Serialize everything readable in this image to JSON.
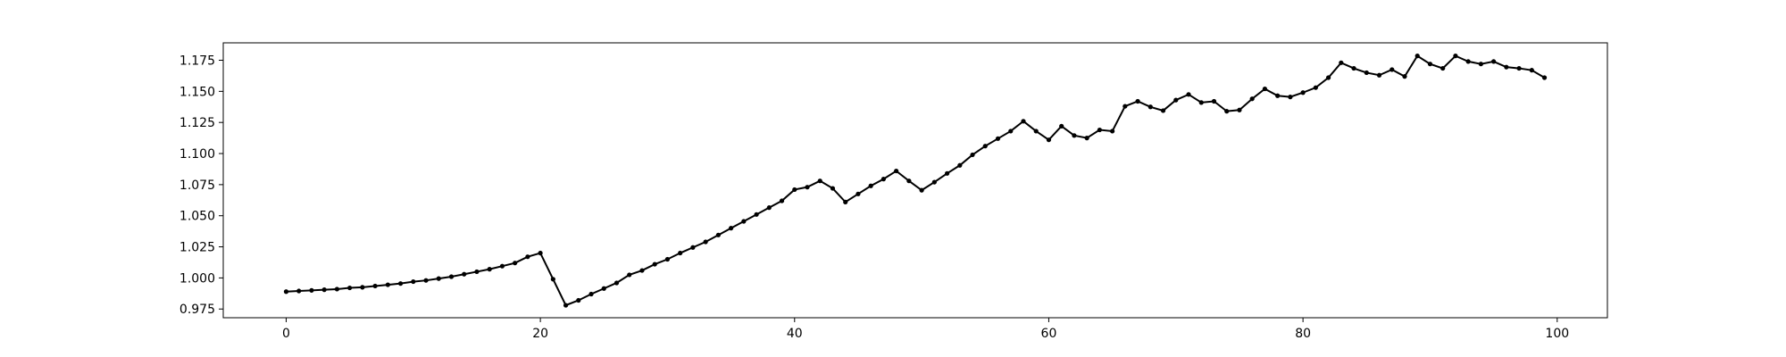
{
  "chart_data": {
    "type": "line",
    "color": "#000000",
    "x": [
      0,
      1,
      2,
      3,
      4,
      5,
      6,
      7,
      8,
      9,
      10,
      11,
      12,
      13,
      14,
      15,
      16,
      17,
      18,
      19,
      20,
      21,
      22,
      23,
      24,
      25,
      26,
      27,
      28,
      29,
      30,
      31,
      32,
      33,
      34,
      35,
      36,
      37,
      38,
      39,
      40,
      41,
      42,
      43,
      44,
      45,
      46,
      47,
      48,
      49,
      50,
      51,
      52,
      53,
      54,
      55,
      56,
      57,
      58,
      59,
      60,
      61,
      62,
      63,
      64,
      65,
      66,
      67,
      68,
      69,
      70,
      71,
      72,
      73,
      74,
      75,
      76,
      77,
      78,
      79,
      80,
      81,
      82,
      83,
      84,
      85,
      86,
      87,
      88,
      89,
      90,
      91,
      92,
      93,
      94,
      95,
      96,
      97,
      98,
      99
    ],
    "values": [
      0.989,
      0.9895,
      0.99,
      0.9905,
      0.991,
      0.992,
      0.9925,
      0.9935,
      0.9945,
      0.9955,
      0.997,
      0.998,
      0.9995,
      1.001,
      1.003,
      1.005,
      1.007,
      1.0095,
      1.012,
      1.017,
      1.02,
      0.999,
      0.978,
      0.982,
      0.987,
      0.9915,
      0.996,
      1.0025,
      1.006,
      1.011,
      1.015,
      1.02,
      1.0245,
      1.029,
      1.0345,
      1.04,
      1.0455,
      1.051,
      1.0565,
      1.062,
      1.071,
      1.073,
      1.078,
      1.072,
      1.061,
      1.0675,
      1.074,
      1.0795,
      1.086,
      1.078,
      1.0705,
      1.077,
      1.084,
      1.0905,
      1.099,
      1.106,
      1.112,
      1.118,
      1.126,
      1.118,
      1.111,
      1.122,
      1.1145,
      1.1125,
      1.119,
      1.118,
      1.138,
      1.142,
      1.1375,
      1.1345,
      1.143,
      1.1475,
      1.141,
      1.142,
      1.134,
      1.135,
      1.144,
      1.152,
      1.1465,
      1.1455,
      1.149,
      1.153,
      1.161,
      1.173,
      1.1685,
      1.165,
      1.163,
      1.1675,
      1.162,
      1.1785,
      1.172,
      1.1685,
      1.1785,
      1.174,
      1.172,
      1.174,
      1.1695,
      1.1685,
      1.167,
      1.161
    ],
    "xlim": [
      -4.95,
      103.95
    ],
    "xticks": [
      0,
      20,
      40,
      60,
      80,
      100
    ],
    "ylim": [
      0.968,
      1.189
    ],
    "yticks": [
      0.975,
      {
        "value": 1.0,
        "label": "1.000"
      },
      1.025,
      {
        "value": 1.05,
        "label": "1.050"
      },
      1.075,
      {
        "value": 1.1,
        "label": "1.100"
      },
      1.125,
      {
        "value": 1.15,
        "label": "1.150"
      },
      1.175
    ]
  }
}
